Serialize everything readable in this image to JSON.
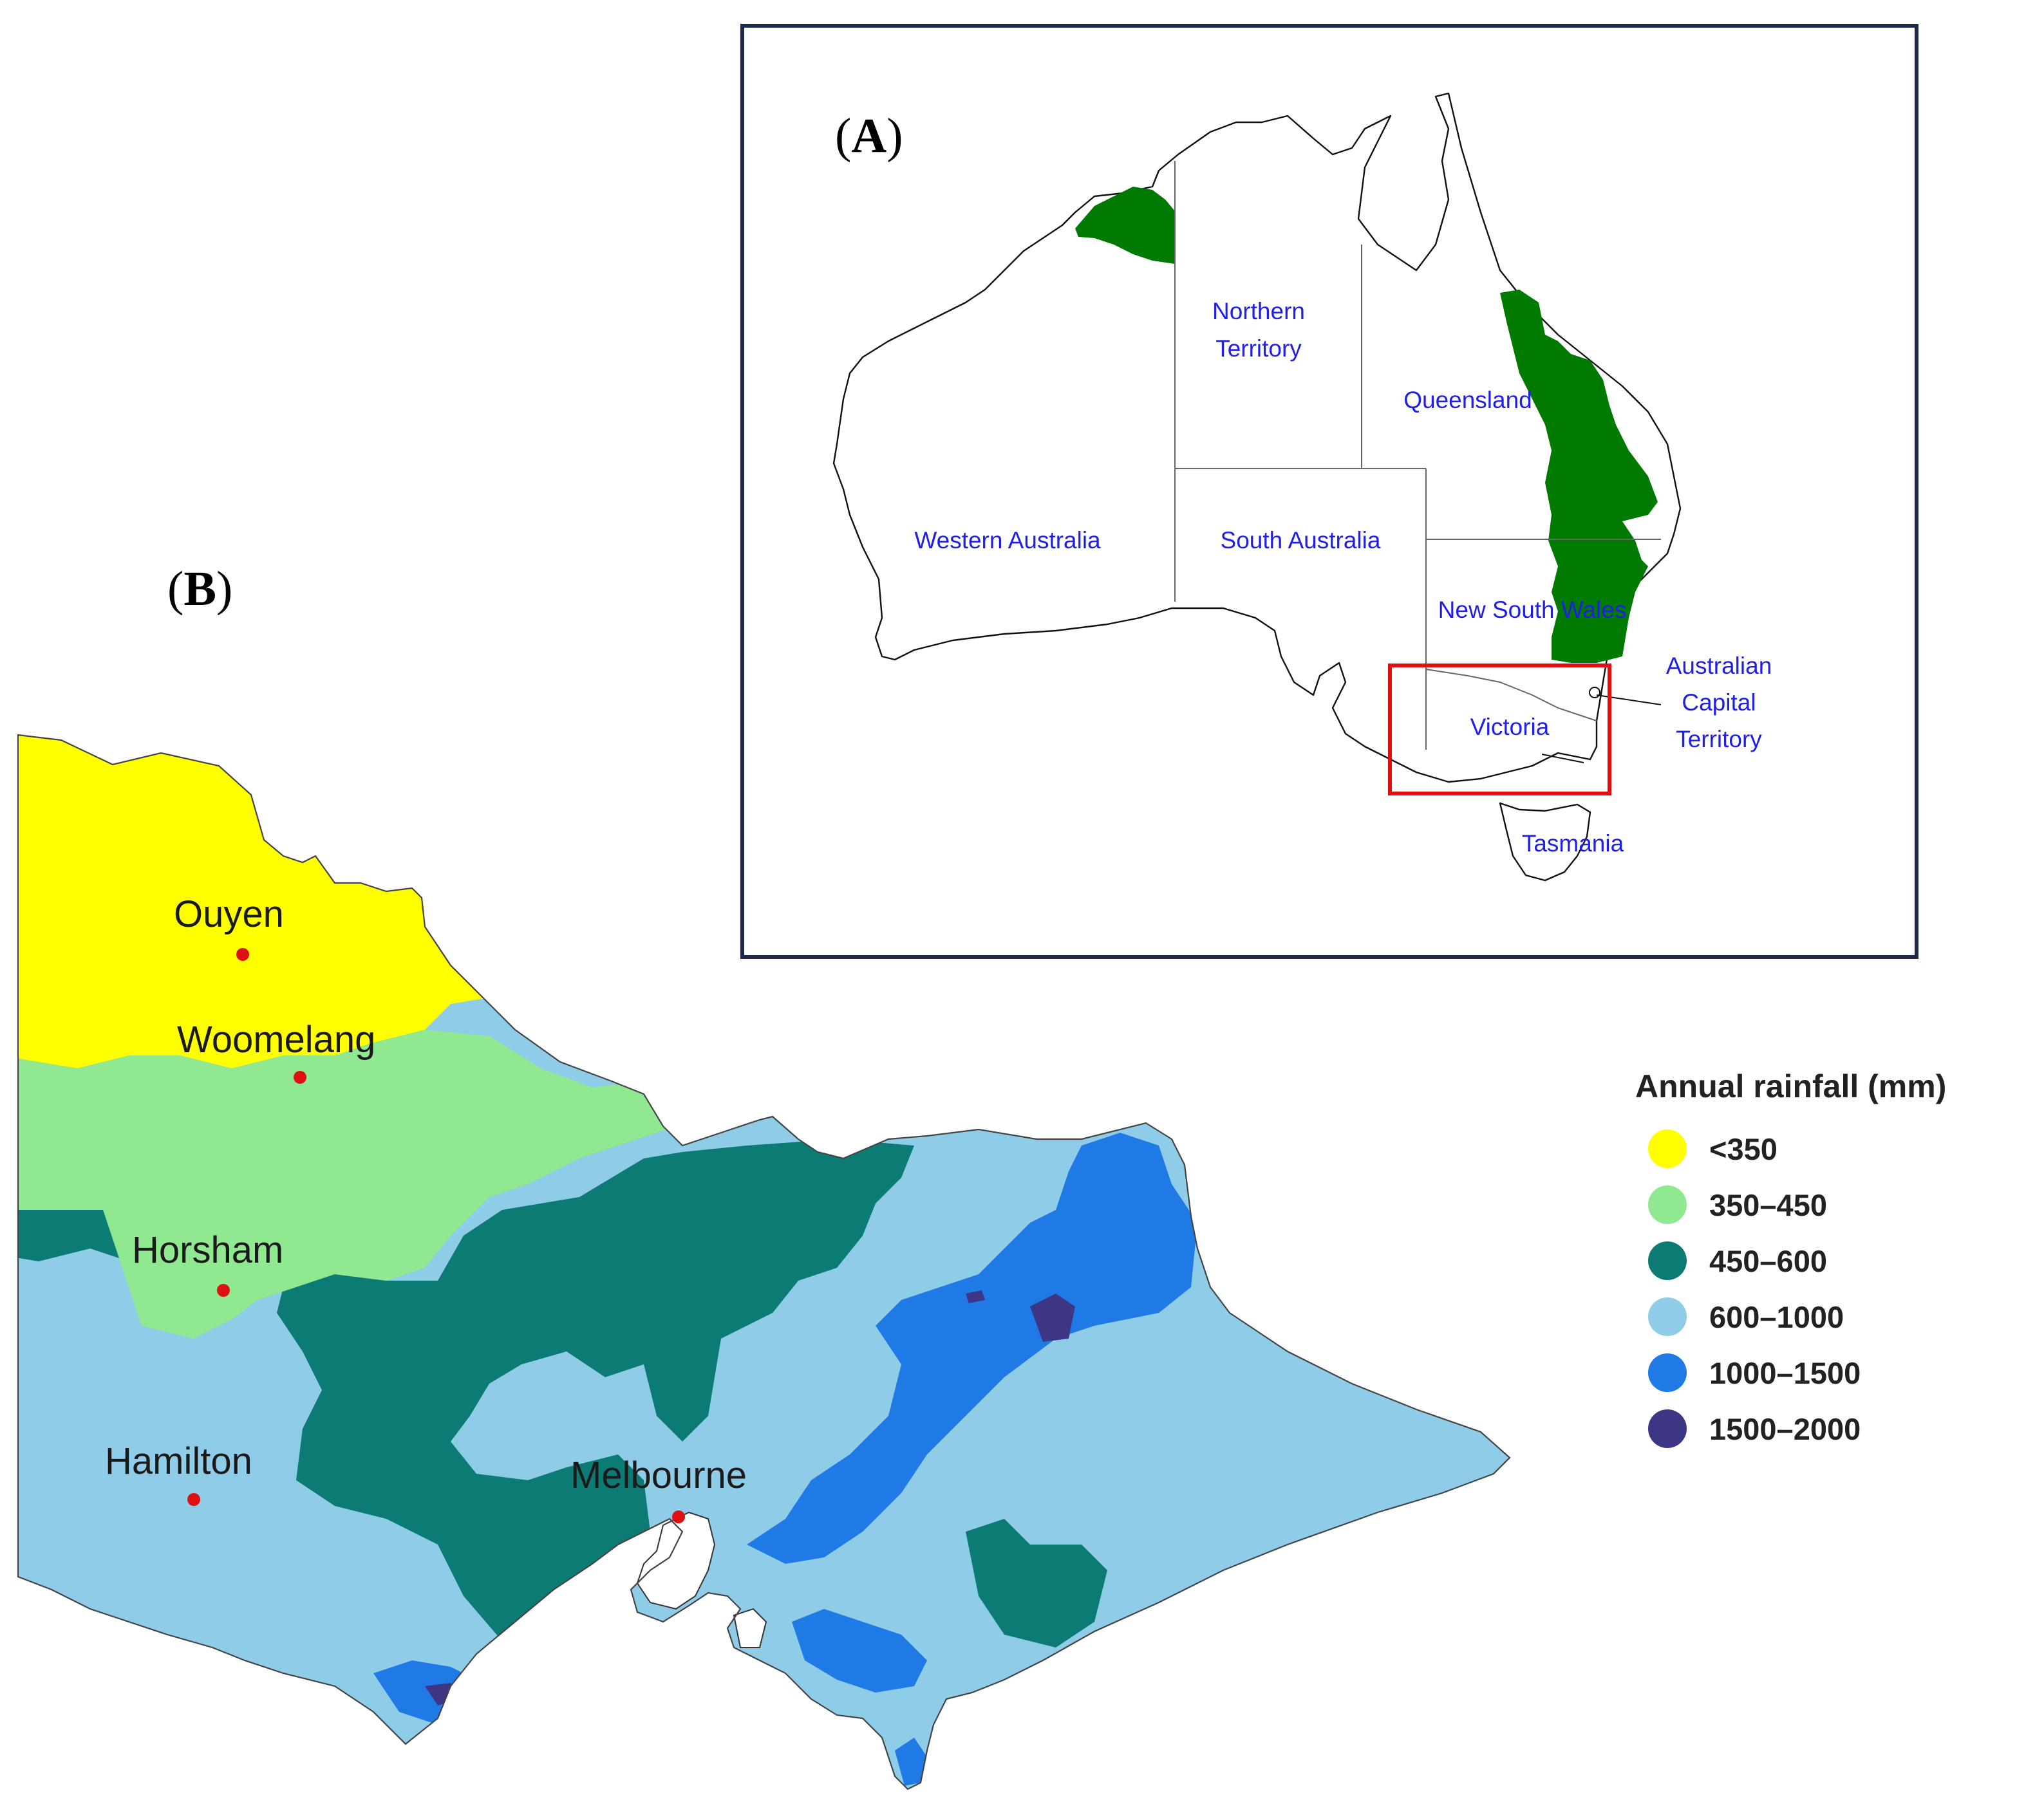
{
  "panel_a": {
    "label_open": "(",
    "label_letter": "A",
    "label_close": ")",
    "states": {
      "northern_territory_line1": "Northern",
      "northern_territory_line2": "Territory",
      "queensland": "Queensland",
      "western_australia": "Western Australia",
      "south_australia": "South Australia",
      "new_south_wales": "New South Wales",
      "act_line1": "Australian",
      "act_line2": "Capital",
      "act_line3": "Territory",
      "victoria": "Victoria",
      "tasmania": "Tasmania"
    },
    "colors": {
      "frame": "#1c2a47",
      "highlight_region": "#007a00",
      "focus_box": "#e01010",
      "labels": "#1f1fe6"
    }
  },
  "panel_b": {
    "label_open": "(",
    "label_letter": "B",
    "label_close": ")",
    "cities": {
      "ouyen": "Ouyen",
      "woomelang": "Woomelang",
      "horsham": "Horsham",
      "hamilton": "Hamilton",
      "melbourne": "Melbourne"
    },
    "legend": {
      "title": "Annual rainfall (mm)",
      "items": [
        {
          "label": "<350",
          "color": "#ffff00"
        },
        {
          "label": "350–450",
          "color": "#90e890"
        },
        {
          "label": "450–600",
          "color": "#0b7b74"
        },
        {
          "label": "600–1000",
          "color": "#8fcce8"
        },
        {
          "label": "1000–1500",
          "color": "#1f7ae6"
        },
        {
          "label": "1500–2000",
          "color": "#3c3684"
        }
      ]
    },
    "city_marker_color": "#dd1111"
  }
}
